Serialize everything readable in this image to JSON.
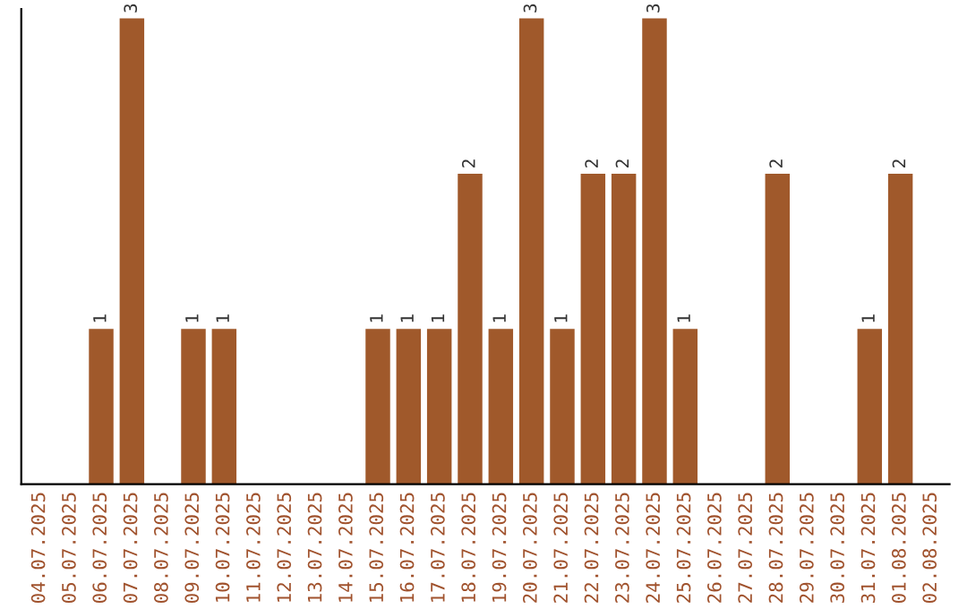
{
  "chart_data": {
    "type": "bar",
    "categories": [
      "04.07.2025",
      "05.07.2025",
      "06.07.2025",
      "07.07.2025",
      "08.07.2025",
      "09.07.2025",
      "10.07.2025",
      "11.07.2025",
      "12.07.2025",
      "13.07.2025",
      "14.07.2025",
      "15.07.2025",
      "16.07.2025",
      "17.07.2025",
      "18.07.2025",
      "19.07.2025",
      "20.07.2025",
      "21.07.2025",
      "22.07.2025",
      "23.07.2025",
      "24.07.2025",
      "25.07.2025",
      "26.07.2025",
      "27.07.2025",
      "28.07.2025",
      "29.07.2025",
      "30.07.2025",
      "31.07.2025",
      "01.08.2025",
      "02.08.2025"
    ],
    "values": [
      0,
      0,
      1,
      3,
      0,
      1,
      1,
      0,
      0,
      0,
      0,
      1,
      1,
      1,
      2,
      1,
      3,
      1,
      2,
      2,
      3,
      1,
      0,
      0,
      2,
      0,
      0,
      1,
      2,
      0
    ],
    "value_labels": [
      null,
      null,
      "1",
      "3",
      null,
      "1",
      "1",
      null,
      null,
      null,
      null,
      "1",
      "1",
      "1",
      "2",
      "1",
      "3",
      "1",
      "2",
      "2",
      "3",
      "1",
      null,
      null,
      "2",
      null,
      null,
      "1",
      "2",
      null
    ],
    "color": "#a0592b",
    "ylim": [
      0,
      3.06
    ],
    "tick_labels": "x",
    "grid": false,
    "legend": false
  }
}
